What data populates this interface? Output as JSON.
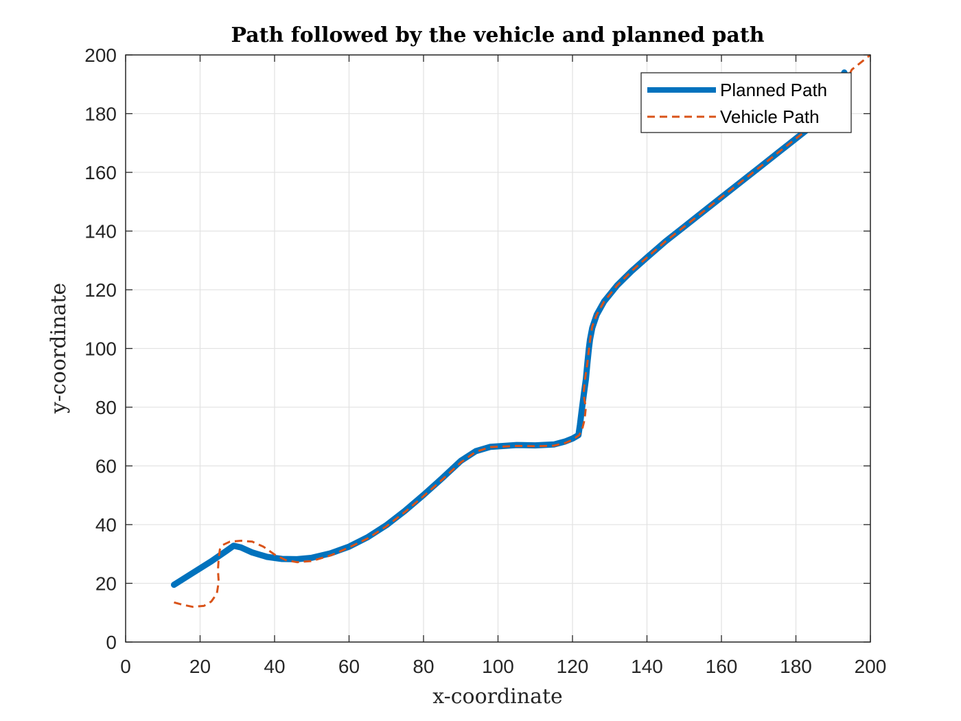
{
  "chart_data": {
    "type": "line",
    "title": "Path followed by the vehicle and planned path",
    "xlabel": "x-coordinate",
    "ylabel": "y-coordinate",
    "xlim": [
      0,
      200
    ],
    "ylim": [
      0,
      200
    ],
    "xticks": [
      0,
      20,
      40,
      60,
      80,
      100,
      120,
      140,
      160,
      180,
      200
    ],
    "yticks": [
      0,
      20,
      40,
      60,
      80,
      100,
      120,
      140,
      160,
      180,
      200
    ],
    "grid": true,
    "legend_position": "top-right",
    "series": [
      {
        "name": "Planned Path",
        "color": "#0072BD",
        "style": "solid",
        "x": [
          13,
          18,
          23,
          27,
          29,
          31,
          34,
          38,
          42,
          46,
          50,
          55,
          60,
          65,
          70,
          75,
          80,
          85,
          90,
          94,
          98,
          105,
          110,
          115,
          118,
          120,
          121.6,
          122,
          122.4,
          123,
          123.6,
          124,
          124.2,
          124.4,
          124.7,
          125.3,
          126.5,
          128.5,
          132,
          136,
          140,
          145,
          150,
          155,
          160,
          165,
          170,
          175,
          180,
          185,
          190,
          193
        ],
        "y": [
          19.5,
          23.5,
          27.5,
          31,
          32.8,
          32.2,
          30.5,
          29,
          28.3,
          28.2,
          28.7,
          30.2,
          32.5,
          35.7,
          39.8,
          44.7,
          50.1,
          55.8,
          61.7,
          65,
          66.5,
          67.1,
          67,
          67.3,
          68.3,
          69.3,
          70.5,
          74,
          78,
          84,
          89.5,
          95,
          97.5,
          100,
          103,
          107,
          111.5,
          116,
          121.5,
          126.5,
          131,
          136.5,
          141.5,
          146.5,
          151.5,
          156.5,
          161.5,
          166.5,
          171.5,
          176.5,
          181.5,
          194
        ]
      },
      {
        "name": "Vehicle Path",
        "color": "#D95319",
        "style": "dashed",
        "x": [
          13,
          15,
          18,
          21,
          23,
          24.5,
          25,
          24.8,
          25,
          25.3,
          26,
          28,
          31,
          34,
          37,
          40,
          43,
          46,
          50,
          55,
          60,
          65,
          70,
          75,
          80,
          85,
          90,
          94,
          98,
          105,
          110,
          115,
          118,
          120,
          121.8,
          122.6,
          123.1,
          123.4,
          123.6,
          123.2,
          123,
          123.3,
          124,
          124.4,
          124.8,
          125.3,
          126.5,
          128.5,
          132,
          136,
          140,
          145,
          150,
          155,
          160,
          165,
          170,
          175,
          180,
          185,
          190,
          195,
          200
        ],
        "y": [
          13.5,
          12.8,
          12,
          12.3,
          13.8,
          16.5,
          20.5,
          24.5,
          28.5,
          31.5,
          33,
          34.2,
          34.5,
          34.2,
          32.5,
          29.8,
          27.9,
          27.2,
          27.6,
          29.5,
          32.2,
          35.3,
          39.4,
          44.3,
          49.7,
          55.3,
          61.2,
          64.8,
          66.4,
          66.8,
          66.7,
          66.9,
          67.8,
          68.9,
          70.5,
          72.5,
          75,
          77.5,
          80,
          82.5,
          85,
          89,
          95,
          99.5,
          103.5,
          107.5,
          111.5,
          116,
          121.5,
          126.5,
          131,
          136.5,
          141.5,
          146.5,
          151.5,
          156.5,
          161.5,
          166.5,
          171.5,
          176.5,
          181.5,
          195,
          200
        ]
      }
    ]
  }
}
